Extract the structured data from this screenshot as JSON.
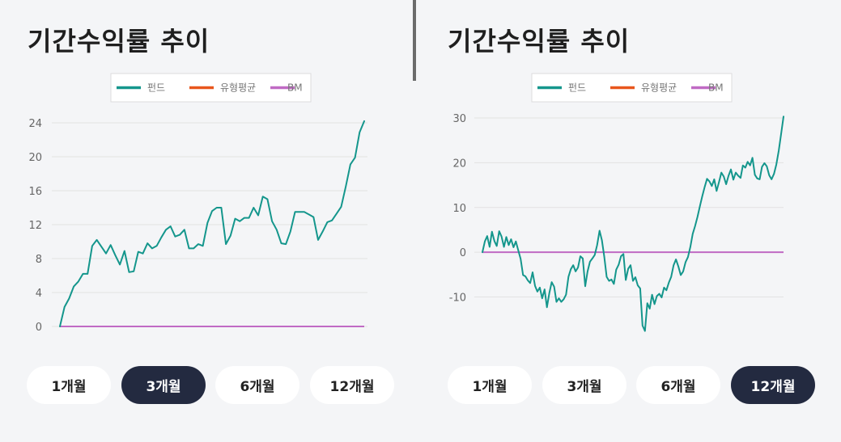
{
  "charts": [
    {
      "title": "기간수익률 추이",
      "legend": [
        {
          "label": "펀드",
          "color": "#14968c"
        },
        {
          "label": "유형평균",
          "color": "#e8561c"
        },
        {
          "label": "BM",
          "color": "#c06ac4"
        }
      ],
      "periods": [
        {
          "label": "1개월",
          "active": false
        },
        {
          "label": "3개월",
          "active": true
        },
        {
          "label": "6개월",
          "active": false
        },
        {
          "label": "12개월",
          "active": false
        }
      ]
    },
    {
      "title": "기간수익률 추이",
      "legend": [
        {
          "label": "펀드",
          "color": "#14968c"
        },
        {
          "label": "유형평균",
          "color": "#e8561c"
        },
        {
          "label": "BM",
          "color": "#c06ac4"
        }
      ],
      "periods": [
        {
          "label": "1개월",
          "active": false
        },
        {
          "label": "3개월",
          "active": false
        },
        {
          "label": "6개월",
          "active": false
        },
        {
          "label": "12개월",
          "active": true
        }
      ]
    }
  ],
  "chart_data": [
    {
      "type": "line",
      "title": "기간수익률 추이",
      "period": "3개월",
      "yticks": [
        "0",
        "4",
        "8",
        "12",
        "16",
        "20",
        "24"
      ],
      "ylim": [
        0,
        24
      ],
      "grid": true,
      "legend_position": "top-center",
      "series": [
        {
          "name": "펀드",
          "color": "#14968c",
          "values": [
            0,
            2.3,
            3.3,
            4.7,
            5.3,
            6.2,
            6.2,
            9.5,
            10.2,
            9.4,
            8.6,
            9.6,
            8.4,
            7.3,
            8.9,
            6.4,
            6.5,
            8.8,
            8.6,
            9.8,
            9.2,
            9.5,
            10.5,
            11.4,
            11.8,
            10.6,
            10.8,
            11.4,
            9.2,
            9.2,
            9.7,
            9.5,
            12.2,
            13.6,
            14,
            14,
            9.7,
            10.7,
            12.7,
            12.4,
            12.8,
            12.8,
            14,
            13.1,
            15.3,
            15,
            12.4,
            11.4,
            9.8,
            9.7,
            11.2,
            13.5,
            13.5,
            13.5,
            13.2,
            12.9,
            10.2,
            11.2,
            12.3,
            12.5,
            13.3,
            14.1,
            16.5,
            19.1,
            19.9,
            22.9,
            24.2
          ]
        },
        {
          "name": "유형평균",
          "color": "#e8561c",
          "values": []
        },
        {
          "name": "BM",
          "color": "#c06ac4",
          "values": [
            0,
            0
          ]
        }
      ]
    },
    {
      "type": "line",
      "title": "기간수익률 추이",
      "period": "12개월",
      "yticks": [
        "-10",
        "0",
        "10",
        "20",
        "30"
      ],
      "ylim": [
        -18,
        30
      ],
      "grid": true,
      "legend_position": "top-center",
      "series": [
        {
          "name": "펀드",
          "color": "#14968c",
          "values": [
            0,
            2.4,
            3.6,
            1.2,
            4.6,
            2.5,
            1.4,
            4.7,
            3.5,
            1.2,
            3.4,
            1.6,
            2.9,
            1.1,
            2.4,
            0.4,
            -1.5,
            -5.1,
            -5.4,
            -6.3,
            -6.9,
            -4.5,
            -7.5,
            -8.8,
            -7.9,
            -10.3,
            -8.3,
            -12.3,
            -9.1,
            -6.7,
            -7.7,
            -11.1,
            -10.3,
            -11.1,
            -10.5,
            -9.5,
            -5.5,
            -3.8,
            -2.9,
            -4.3,
            -3.4,
            -0.9,
            -1.4,
            -7.6,
            -4.3,
            -2.1,
            -1.4,
            -0.6,
            1.6,
            4.8,
            2.7,
            -1.1,
            -5.5,
            -6.4,
            -6.1,
            -7.1,
            -3.9,
            -2.8,
            -0.9,
            -0.4,
            -6.2,
            -3.7,
            -2.9,
            -6.4,
            -5.6,
            -7.4,
            -8.1,
            -16.4,
            -17.6,
            -11.4,
            -12.6,
            -9.5,
            -11.6,
            -9.8,
            -9.3,
            -10.1,
            -7.9,
            -8.5,
            -6.8,
            -5.5,
            -2.9,
            -1.6,
            -3.2,
            -5.1,
            -4.3,
            -2.2,
            -1.1,
            1.2,
            4.1,
            5.9,
            7.9,
            10.3,
            12.5,
            14.6,
            16.4,
            15.8,
            14.8,
            16.3,
            13.7,
            15.7,
            17.8,
            16.9,
            15.2,
            17.1,
            18.5,
            16.2,
            17.8,
            17.1,
            16.6,
            19.4,
            18.9,
            20.2,
            19.4,
            21.1,
            17.3,
            16.5,
            16.3,
            19.1,
            19.9,
            19.2,
            17.2,
            16.3,
            17.5,
            19.6,
            22.7,
            26.4,
            30.3
          ]
        },
        {
          "name": "유형평균",
          "color": "#e8561c",
          "values": []
        },
        {
          "name": "BM",
          "color": "#c06ac4",
          "values": [
            0,
            0
          ]
        }
      ]
    }
  ]
}
